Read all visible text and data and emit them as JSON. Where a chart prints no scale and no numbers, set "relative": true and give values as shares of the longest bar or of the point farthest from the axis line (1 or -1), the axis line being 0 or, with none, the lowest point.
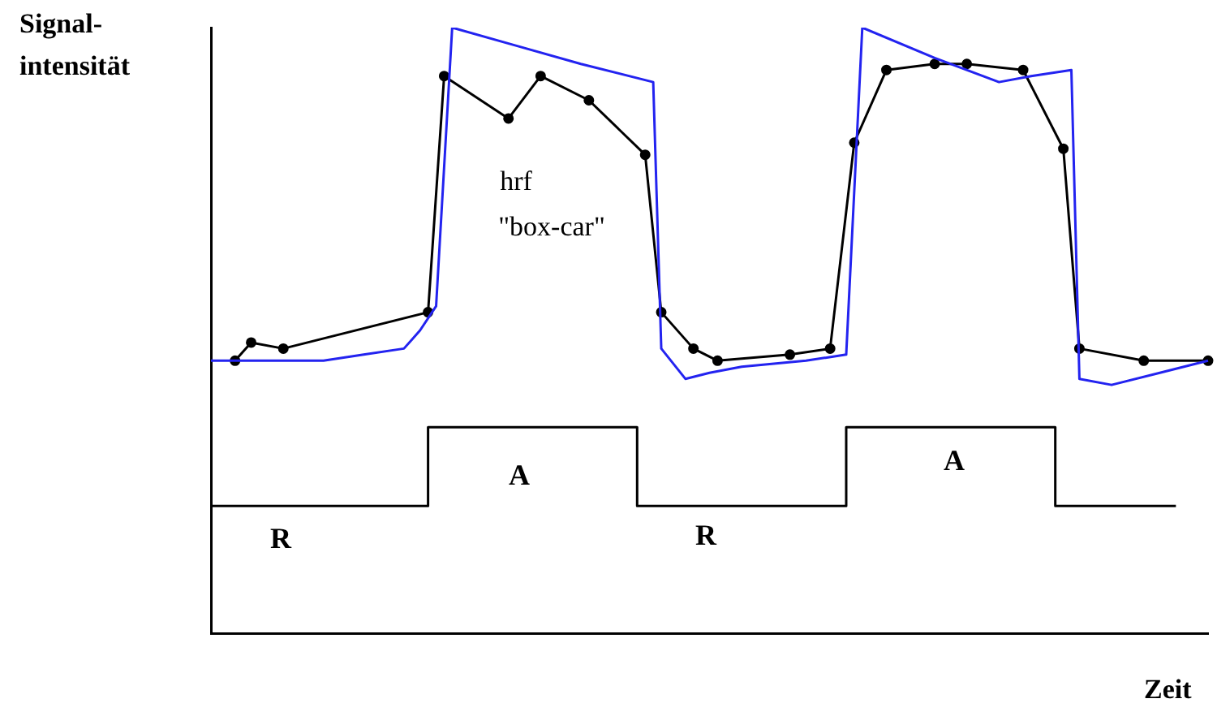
{
  "chart_data": {
    "type": "line",
    "relative": true,
    "tick_labels": false,
    "ylabel": "Signal-\nintensität",
    "xlabel": "Zeit",
    "annotations": [
      "hrf",
      "\"box-car\"",
      "A",
      "A",
      "R",
      "R"
    ],
    "categories": [
      null,
      null,
      null,
      null,
      null,
      null,
      null,
      null,
      null,
      null,
      null,
      null,
      null,
      null,
      null,
      null,
      null,
      null,
      null,
      null,
      null,
      null,
      null,
      null,
      null,
      null,
      null,
      null,
      null,
      null,
      null,
      null,
      null,
      null,
      null,
      null,
      null,
      null,
      null,
      null,
      null,
      null,
      null,
      null,
      null,
      null,
      null,
      null,
      null,
      null,
      null,
      null,
      null,
      null,
      null,
      null,
      null,
      null,
      null,
      null,
      null,
      null,
      null,
      null,
      null,
      null,
      null,
      null,
      null,
      null,
      null,
      null,
      null,
      null,
      null,
      null,
      null,
      null,
      null,
      null,
      null,
      null,
      null,
      null,
      null,
      null,
      null,
      null,
      null,
      null,
      null,
      null,
      null,
      null,
      null,
      null,
      null,
      null,
      null,
      null,
      null,
      null,
      null,
      null,
      null,
      null,
      null,
      null,
      null,
      null,
      null,
      null,
      null,
      null,
      null,
      null,
      null,
      null,
      null,
      null,
      null,
      null,
      null,
      null,
      null
    ],
    "series": [
      {
        "color": "#2323f0",
        "marker": "none",
        "values": [
          0.45,
          null,
          null,
          null,
          null,
          null,
          null,
          null,
          null,
          null,
          null,
          null,
          null,
          null,
          0.45,
          null,
          null,
          null,
          null,
          0.46,
          null,
          null,
          null,
          null,
          0.47,
          null,
          0.5,
          null,
          0.54,
          null,
          1.0,
          null,
          null,
          null,
          null,
          null,
          null,
          null,
          0.97,
          null,
          null,
          null,
          null,
          null,
          null,
          null,
          0.94,
          null,
          null,
          null,
          null,
          null,
          null,
          null,
          null,
          0.91,
          0.47,
          null,
          null,
          0.42,
          null,
          null,
          0.43,
          null,
          null,
          null,
          0.44,
          null,
          null,
          null,
          null,
          null,
          null,
          null,
          0.45,
          null,
          null,
          null,
          null,
          0.46,
          null,
          1.0,
          null,
          null,
          null,
          null,
          null,
          null,
          null,
          null,
          0.95,
          null,
          null,
          null,
          null,
          null,
          null,
          null,
          0.91,
          null,
          null,
          null,
          0.92,
          null,
          null,
          null,
          null,
          0.93,
          0.42,
          null,
          null,
          null,
          0.41,
          null,
          null,
          null,
          null,
          null,
          0.43,
          null,
          null,
          null,
          null,
          null,
          0.45
        ]
      },
      {
        "color": "#000000",
        "marker": "circle",
        "values": [
          null,
          null,
          null,
          0.45,
          null,
          0.48,
          null,
          null,
          null,
          0.47,
          null,
          null,
          null,
          null,
          null,
          null,
          null,
          null,
          null,
          null,
          null,
          null,
          null,
          null,
          null,
          null,
          null,
          0.53,
          null,
          0.92,
          null,
          null,
          null,
          null,
          null,
          null,
          null,
          0.85,
          null,
          null,
          null,
          0.92,
          null,
          null,
          null,
          null,
          null,
          0.88,
          null,
          null,
          null,
          null,
          null,
          null,
          0.79,
          null,
          0.53,
          null,
          null,
          null,
          0.47,
          null,
          null,
          0.45,
          null,
          null,
          null,
          null,
          null,
          null,
          null,
          null,
          0.46,
          null,
          null,
          null,
          null,
          0.47,
          null,
          null,
          0.81,
          null,
          null,
          null,
          0.93,
          null,
          null,
          null,
          null,
          null,
          0.94,
          null,
          null,
          null,
          0.94,
          null,
          null,
          null,
          null,
          null,
          null,
          0.93,
          null,
          null,
          null,
          null,
          0.8,
          null,
          0.47,
          null,
          null,
          null,
          null,
          null,
          null,
          null,
          0.45,
          null,
          null,
          null,
          null,
          null,
          null,
          null,
          0.45
        ]
      },
      {
        "type": "step",
        "color": "#000000",
        "marker": "none",
        "values": [
          0.21,
          null,
          null,
          null,
          null,
          null,
          null,
          null,
          null,
          null,
          null,
          null,
          null,
          null,
          null,
          null,
          null,
          null,
          null,
          null,
          null,
          null,
          null,
          null,
          null,
          null,
          null,
          0.34,
          null,
          null,
          null,
          null,
          null,
          null,
          null,
          null,
          null,
          null,
          null,
          null,
          null,
          null,
          null,
          null,
          null,
          null,
          null,
          null,
          null,
          null,
          null,
          null,
          null,
          0.21,
          null,
          null,
          null,
          null,
          null,
          null,
          null,
          null,
          null,
          null,
          null,
          null,
          null,
          null,
          null,
          null,
          null,
          null,
          null,
          null,
          null,
          null,
          null,
          null,
          null,
          0.34,
          null,
          null,
          null,
          null,
          null,
          null,
          null,
          null,
          null,
          null,
          null,
          null,
          null,
          null,
          null,
          null,
          null,
          null,
          null,
          null,
          null,
          null,
          null,
          null,
          null,
          0.21,
          null,
          null,
          null,
          null,
          null,
          null,
          null,
          null,
          null,
          null,
          null,
          null,
          null,
          null,
          0.21,
          null,
          null,
          null,
          null
        ]
      }
    ]
  }
}
